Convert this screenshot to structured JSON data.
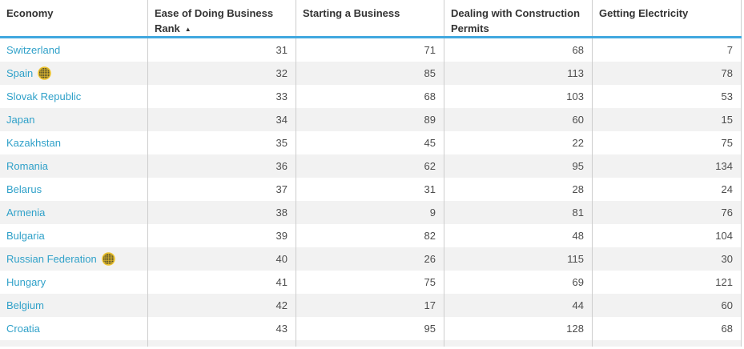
{
  "table": {
    "sort_icon": "▲",
    "columns": [
      {
        "id": "economy",
        "label": "Economy"
      },
      {
        "id": "ease-of-doing-business-rank",
        "label": "Ease of Doing Business Rank",
        "sorted": "ascending"
      },
      {
        "id": "starting-a-business",
        "label": "Starting a Business"
      },
      {
        "id": "dealing-with-construction-permits",
        "label": "Dealing with Construction Permits"
      },
      {
        "id": "getting-electricity",
        "label": "Getting Electricity"
      }
    ],
    "rows": [
      {
        "economy": "Switzerland",
        "has_icon": false,
        "values": [
          31,
          71,
          68,
          7
        ]
      },
      {
        "economy": "Spain",
        "has_icon": true,
        "values": [
          32,
          85,
          113,
          78
        ]
      },
      {
        "economy": "Slovak Republic",
        "has_icon": false,
        "values": [
          33,
          68,
          103,
          53
        ]
      },
      {
        "economy": "Japan",
        "has_icon": false,
        "values": [
          34,
          89,
          60,
          15
        ]
      },
      {
        "economy": "Kazakhstan",
        "has_icon": false,
        "values": [
          35,
          45,
          22,
          75
        ]
      },
      {
        "economy": "Romania",
        "has_icon": false,
        "values": [
          36,
          62,
          95,
          134
        ]
      },
      {
        "economy": "Belarus",
        "has_icon": false,
        "values": [
          37,
          31,
          28,
          24
        ]
      },
      {
        "economy": "Armenia",
        "has_icon": false,
        "values": [
          38,
          9,
          81,
          76
        ]
      },
      {
        "economy": "Bulgaria",
        "has_icon": false,
        "values": [
          39,
          82,
          48,
          104
        ]
      },
      {
        "economy": "Russian Federation",
        "has_icon": true,
        "values": [
          40,
          26,
          115,
          30
        ]
      },
      {
        "economy": "Hungary",
        "has_icon": false,
        "values": [
          41,
          75,
          69,
          121
        ]
      },
      {
        "economy": "Belgium",
        "has_icon": false,
        "values": [
          42,
          17,
          44,
          60
        ]
      },
      {
        "economy": "Croatia",
        "has_icon": false,
        "values": [
          43,
          95,
          128,
          68
        ]
      }
    ]
  },
  "colors": {
    "link_blue": "#30a1c9",
    "header_underline": "#41a8df",
    "row_alt_gray": "#f2f2f2",
    "divider_gray": "#cdcdcd",
    "number_text": "#4d4d4d",
    "header_text": "#333333",
    "icon_yellow": "#edc32e",
    "icon_grid_dark": "#55502c"
  }
}
